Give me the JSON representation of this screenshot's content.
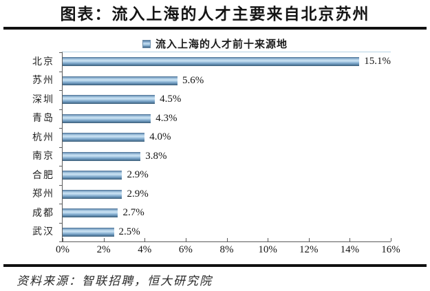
{
  "header": {
    "title": "图表：流入上海的人才主要来自北京苏州"
  },
  "chart_data": {
    "type": "bar",
    "orientation": "horizontal",
    "title": "图表：流入上海的人才主要来自北京苏州",
    "legend": "流入上海的人才前十来源地",
    "legend_position": "top-center",
    "categories": [
      "北京",
      "苏州",
      "深圳",
      "青岛",
      "杭州",
      "南京",
      "合肥",
      "郑州",
      "成都",
      "武汉"
    ],
    "values": [
      15.1,
      5.6,
      4.5,
      4.3,
      4.0,
      3.8,
      2.9,
      2.9,
      2.7,
      2.5
    ],
    "value_labels": [
      "15.1%",
      "5.6%",
      "4.5%",
      "4.3%",
      "4.0%",
      "3.8%",
      "2.9%",
      "2.9%",
      "2.7%",
      "2.5%"
    ],
    "x_ticks": [
      "0%",
      "2%",
      "4%",
      "6%",
      "8%",
      "10%",
      "12%",
      "14%",
      "16%"
    ],
    "xlim": [
      0,
      16
    ],
    "xlabel": "",
    "ylabel": "",
    "grid": false,
    "bar_color_main": "#6e9ac2",
    "bar_gradient_light": "#cbe2f3",
    "bar_gradient_dark": "#38566f",
    "axis_color": "#5a5a5a"
  },
  "footer": {
    "source": "资料来源：智联招聘，恒大研究院"
  }
}
